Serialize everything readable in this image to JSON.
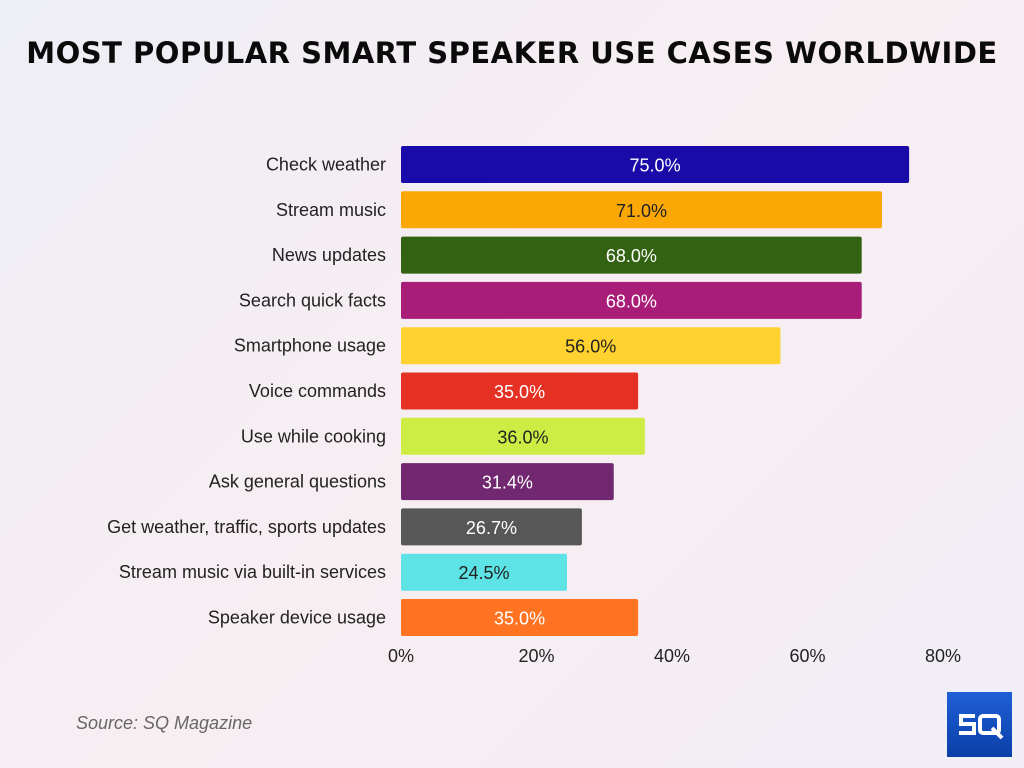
{
  "chart_data": {
    "type": "bar",
    "orientation": "horizontal",
    "title": "MOST POPULAR SMART SPEAKER USE CASES WORLDWIDE",
    "categories": [
      "Check weather",
      "Stream music",
      "News updates",
      "Search quick facts",
      "Smartphone usage",
      "Voice commands",
      "Use while cooking",
      "Ask general questions",
      "Get weather, traffic, sports updates",
      "Stream music via built-in services",
      "Speaker device usage"
    ],
    "values": [
      75.0,
      71.0,
      68.0,
      68.0,
      56.0,
      35.0,
      36.0,
      31.4,
      26.7,
      24.5,
      35.0
    ],
    "data_labels": [
      "75.0%",
      "71.0%",
      "68.0%",
      "68.0%",
      "56.0%",
      "35.0%",
      "36.0%",
      "31.4%",
      "26.7%",
      "24.5%",
      "35.0%"
    ],
    "colors": [
      "#1a0aa8",
      "#fba806",
      "#336212",
      "#a81d78",
      "#ffd22f",
      "#e53124",
      "#cdec44",
      "#712870",
      "#575757",
      "#5de2e6",
      "#ff7322"
    ],
    "label_colors": [
      "#ffffff",
      "#222222",
      "#ffffff",
      "#ffffff",
      "#222222",
      "#ffffff",
      "#222222",
      "#ffffff",
      "#ffffff",
      "#222222",
      "#ffffff"
    ],
    "xlim": [
      0,
      80
    ],
    "xticks": [
      "0%",
      "20%",
      "40%",
      "60%",
      "80%"
    ],
    "xtick_values": [
      0,
      20,
      40,
      60,
      80
    ],
    "grid": false,
    "xlabel": "",
    "ylabel": ""
  },
  "source": "Source: SQ Magazine",
  "logo_text": "SQ"
}
